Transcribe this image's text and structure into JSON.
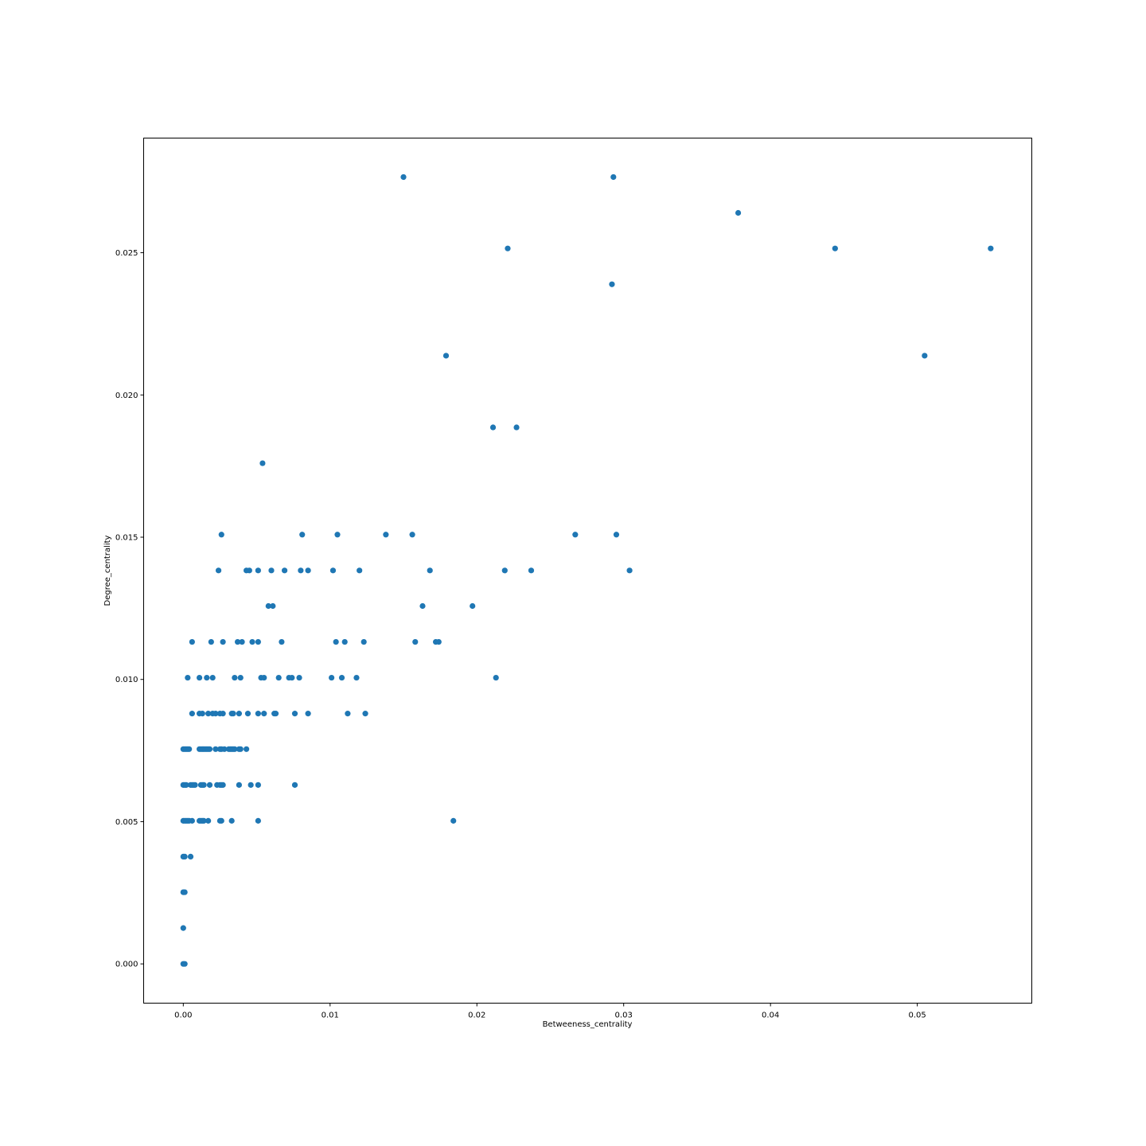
{
  "chart_data": {
    "type": "scatter",
    "title": "",
    "xlabel": "Betweeness_centrality",
    "ylabel": "Degree_centrality",
    "xlim": [
      -0.0027,
      0.0578
    ],
    "ylim": [
      -0.00138,
      0.02903
    ],
    "xticks": [
      0.0,
      0.01,
      0.02,
      0.03,
      0.04,
      0.05
    ],
    "xtick_labels": [
      "0.00",
      "0.01",
      "0.02",
      "0.03",
      "0.04",
      "0.05"
    ],
    "yticks": [
      0.0,
      0.005,
      0.01,
      0.015,
      0.02,
      0.025
    ],
    "ytick_labels": [
      "0.000",
      "0.005",
      "0.010",
      "0.015",
      "0.020",
      "0.025"
    ],
    "grid": false,
    "legend": "none",
    "colors": {
      "marker": "#1f77b4",
      "axes": "#000000",
      "background": "#ffffff"
    },
    "points": [
      [
        0.015,
        0.02766
      ],
      [
        0.0293,
        0.02766
      ],
      [
        0.0378,
        0.0264
      ],
      [
        0.0221,
        0.02515
      ],
      [
        0.0444,
        0.02515
      ],
      [
        0.055,
        0.02515
      ],
      [
        0.0292,
        0.02389
      ],
      [
        0.0179,
        0.02138
      ],
      [
        0.0505,
        0.02138
      ],
      [
        0.0211,
        0.01886
      ],
      [
        0.0227,
        0.01886
      ],
      [
        0.0054,
        0.0176
      ],
      [
        0.0026,
        0.01509
      ],
      [
        0.0081,
        0.01509
      ],
      [
        0.0105,
        0.01509
      ],
      [
        0.0138,
        0.01509
      ],
      [
        0.0156,
        0.01509
      ],
      [
        0.0267,
        0.01509
      ],
      [
        0.0295,
        0.01509
      ],
      [
        0.0024,
        0.01383
      ],
      [
        0.0043,
        0.01383
      ],
      [
        0.0045,
        0.01383
      ],
      [
        0.0051,
        0.01383
      ],
      [
        0.006,
        0.01383
      ],
      [
        0.0069,
        0.01383
      ],
      [
        0.008,
        0.01383
      ],
      [
        0.0085,
        0.01383
      ],
      [
        0.0102,
        0.01383
      ],
      [
        0.012,
        0.01383
      ],
      [
        0.0168,
        0.01383
      ],
      [
        0.0219,
        0.01383
      ],
      [
        0.0237,
        0.01383
      ],
      [
        0.0304,
        0.01383
      ],
      [
        0.0058,
        0.01258
      ],
      [
        0.0061,
        0.01258
      ],
      [
        0.0163,
        0.01258
      ],
      [
        0.0197,
        0.01258
      ],
      [
        0.0006,
        0.01132
      ],
      [
        0.0019,
        0.01132
      ],
      [
        0.0027,
        0.01132
      ],
      [
        0.0037,
        0.01132
      ],
      [
        0.004,
        0.01132
      ],
      [
        0.0047,
        0.01132
      ],
      [
        0.0051,
        0.01132
      ],
      [
        0.0067,
        0.01132
      ],
      [
        0.0104,
        0.01132
      ],
      [
        0.011,
        0.01132
      ],
      [
        0.0123,
        0.01132
      ],
      [
        0.0158,
        0.01132
      ],
      [
        0.0172,
        0.01132
      ],
      [
        0.0174,
        0.01132
      ],
      [
        0.0003,
        0.01006
      ],
      [
        0.0011,
        0.01006
      ],
      [
        0.0016,
        0.01006
      ],
      [
        0.002,
        0.01006
      ],
      [
        0.0035,
        0.01006
      ],
      [
        0.0039,
        0.01006
      ],
      [
        0.0053,
        0.01006
      ],
      [
        0.0055,
        0.01006
      ],
      [
        0.0065,
        0.01006
      ],
      [
        0.0072,
        0.01006
      ],
      [
        0.0074,
        0.01006
      ],
      [
        0.0079,
        0.01006
      ],
      [
        0.0101,
        0.01006
      ],
      [
        0.0108,
        0.01006
      ],
      [
        0.0118,
        0.01006
      ],
      [
        0.0213,
        0.01006
      ],
      [
        0.0006,
        0.0088
      ],
      [
        0.0011,
        0.0088
      ],
      [
        0.0013,
        0.0088
      ],
      [
        0.0017,
        0.0088
      ],
      [
        0.002,
        0.0088
      ],
      [
        0.0022,
        0.0088
      ],
      [
        0.0025,
        0.0088
      ],
      [
        0.0027,
        0.0088
      ],
      [
        0.0033,
        0.0088
      ],
      [
        0.0034,
        0.0088
      ],
      [
        0.0038,
        0.0088
      ],
      [
        0.0044,
        0.0088
      ],
      [
        0.0051,
        0.0088
      ],
      [
        0.0055,
        0.0088
      ],
      [
        0.0062,
        0.0088
      ],
      [
        0.0063,
        0.0088
      ],
      [
        0.0076,
        0.0088
      ],
      [
        0.0085,
        0.0088
      ],
      [
        0.0112,
        0.0088
      ],
      [
        0.0124,
        0.0088
      ],
      [
        0.0,
        0.00755
      ],
      [
        0.0001,
        0.00755
      ],
      [
        0.0002,
        0.00755
      ],
      [
        0.0003,
        0.00755
      ],
      [
        0.0004,
        0.00755
      ],
      [
        0.0011,
        0.00755
      ],
      [
        0.0012,
        0.00755
      ],
      [
        0.0013,
        0.00755
      ],
      [
        0.0014,
        0.00755
      ],
      [
        0.0015,
        0.00755
      ],
      [
        0.0016,
        0.00755
      ],
      [
        0.0017,
        0.00755
      ],
      [
        0.0018,
        0.00755
      ],
      [
        0.0022,
        0.00755
      ],
      [
        0.0025,
        0.00755
      ],
      [
        0.0026,
        0.00755
      ],
      [
        0.0028,
        0.00755
      ],
      [
        0.0031,
        0.00755
      ],
      [
        0.0032,
        0.00755
      ],
      [
        0.0033,
        0.00755
      ],
      [
        0.0034,
        0.00755
      ],
      [
        0.0035,
        0.00755
      ],
      [
        0.0038,
        0.00755
      ],
      [
        0.0039,
        0.00755
      ],
      [
        0.0043,
        0.00755
      ],
      [
        0.0,
        0.00629
      ],
      [
        0.0001,
        0.00629
      ],
      [
        0.0002,
        0.00629
      ],
      [
        0.0005,
        0.00629
      ],
      [
        0.0006,
        0.00629
      ],
      [
        0.0007,
        0.00629
      ],
      [
        0.0008,
        0.00629
      ],
      [
        0.0012,
        0.00629
      ],
      [
        0.0013,
        0.00629
      ],
      [
        0.0014,
        0.00629
      ],
      [
        0.0018,
        0.00629
      ],
      [
        0.0023,
        0.00629
      ],
      [
        0.0025,
        0.00629
      ],
      [
        0.0026,
        0.00629
      ],
      [
        0.0027,
        0.00629
      ],
      [
        0.0038,
        0.00629
      ],
      [
        0.0046,
        0.00629
      ],
      [
        0.0051,
        0.00629
      ],
      [
        0.0076,
        0.00629
      ],
      [
        0.0,
        0.00503
      ],
      [
        0.0001,
        0.00503
      ],
      [
        0.0002,
        0.00503
      ],
      [
        0.0003,
        0.00503
      ],
      [
        0.0004,
        0.00503
      ],
      [
        0.0006,
        0.00503
      ],
      [
        0.0011,
        0.00503
      ],
      [
        0.0012,
        0.00503
      ],
      [
        0.0013,
        0.00503
      ],
      [
        0.0014,
        0.00503
      ],
      [
        0.0017,
        0.00503
      ],
      [
        0.0025,
        0.00503
      ],
      [
        0.0026,
        0.00503
      ],
      [
        0.0033,
        0.00503
      ],
      [
        0.0051,
        0.00503
      ],
      [
        0.0184,
        0.00503
      ],
      [
        0.0,
        0.00377
      ],
      [
        0.0001,
        0.00377
      ],
      [
        0.0005,
        0.00377
      ],
      [
        0.0,
        0.00252
      ],
      [
        0.0001,
        0.00252
      ],
      [
        0.0,
        0.00126
      ],
      [
        0.0,
        0.0
      ],
      [
        0.0001,
        0.0
      ]
    ]
  }
}
